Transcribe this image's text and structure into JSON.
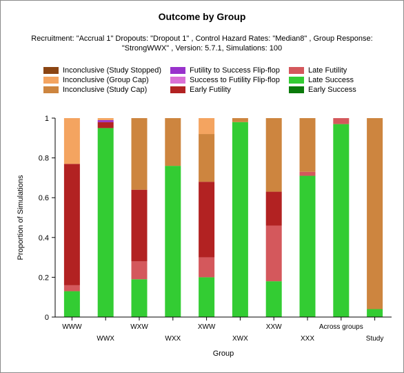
{
  "chart_data": {
    "type": "bar",
    "stacked": true,
    "title": "Outcome by Group",
    "subtitle_lines": [
      "Recruitment: \"Accrual 1\" Dropouts: \"Dropout 1\" , Control Hazard Rates: \"Median8\" , Group Response:",
      "\"StrongWWX\" , Version: 5.7.1, Simulations: 100"
    ],
    "xlabel": "Group",
    "ylabel": "Proportion of Simulations",
    "ylim": [
      0,
      1
    ],
    "yticks": [
      "0",
      "0.2",
      "0.4",
      "0.6",
      "0.8",
      "1"
    ],
    "ytick_values": [
      0,
      0.2,
      0.4,
      0.6,
      0.8,
      1
    ],
    "categories": [
      "WWW",
      "WWX",
      "WXW",
      "WXX",
      "XWW",
      "XWX",
      "XXW",
      "XXX",
      "Across groups",
      "Study"
    ],
    "legend_position": "top",
    "grid": false,
    "series": [
      {
        "name": "Early Success",
        "color": "#0b7a0b",
        "values": [
          0,
          0,
          0,
          0,
          0,
          0,
          0,
          0,
          0,
          0
        ]
      },
      {
        "name": "Late Success",
        "color": "#33cc33",
        "values": [
          0.13,
          0.95,
          0.19,
          0.76,
          0.2,
          0.98,
          0.18,
          0.71,
          0.97,
          0.04
        ]
      },
      {
        "name": "Late Futility",
        "color": "#d4585c",
        "values": [
          0.03,
          0,
          0.09,
          0,
          0.1,
          0,
          0.28,
          0.02,
          0.03,
          0
        ]
      },
      {
        "name": "Early Futility",
        "color": "#b22222",
        "values": [
          0.61,
          0.03,
          0.36,
          0,
          0.38,
          0,
          0.17,
          0,
          0,
          0
        ]
      },
      {
        "name": "Futility to Success Flip-flop",
        "color": "#9932cc",
        "values": [
          0,
          0.01,
          0,
          0,
          0,
          0,
          0,
          0,
          0,
          0
        ]
      },
      {
        "name": "Success to Futility Flip-flop",
        "color": "#da70d6",
        "values": [
          0,
          0,
          0,
          0,
          0,
          0,
          0,
          0,
          0,
          0
        ]
      },
      {
        "name": "Inconclusive (Study Cap)",
        "color": "#cd853f",
        "values": [
          0,
          0,
          0.36,
          0.24,
          0.24,
          0.02,
          0.37,
          0.27,
          0,
          0.96
        ]
      },
      {
        "name": "Inconclusive (Group Cap)",
        "color": "#f4a460",
        "values": [
          0.23,
          0.01,
          0,
          0,
          0.08,
          0,
          0,
          0,
          0,
          0
        ]
      },
      {
        "name": "Inconclusive (Study Stopped)",
        "color": "#8b4513",
        "values": [
          0,
          0,
          0,
          0,
          0,
          0,
          0,
          0,
          0,
          0
        ]
      }
    ],
    "legend_order": [
      "Inconclusive (Study Stopped)",
      "Futility to Success Flip-flop",
      "Late Futility",
      "Inconclusive (Group Cap)",
      "Success to Futility Flip-flop",
      "Late Success",
      "Inconclusive (Study Cap)",
      "Early Futility",
      "Early Success"
    ]
  }
}
